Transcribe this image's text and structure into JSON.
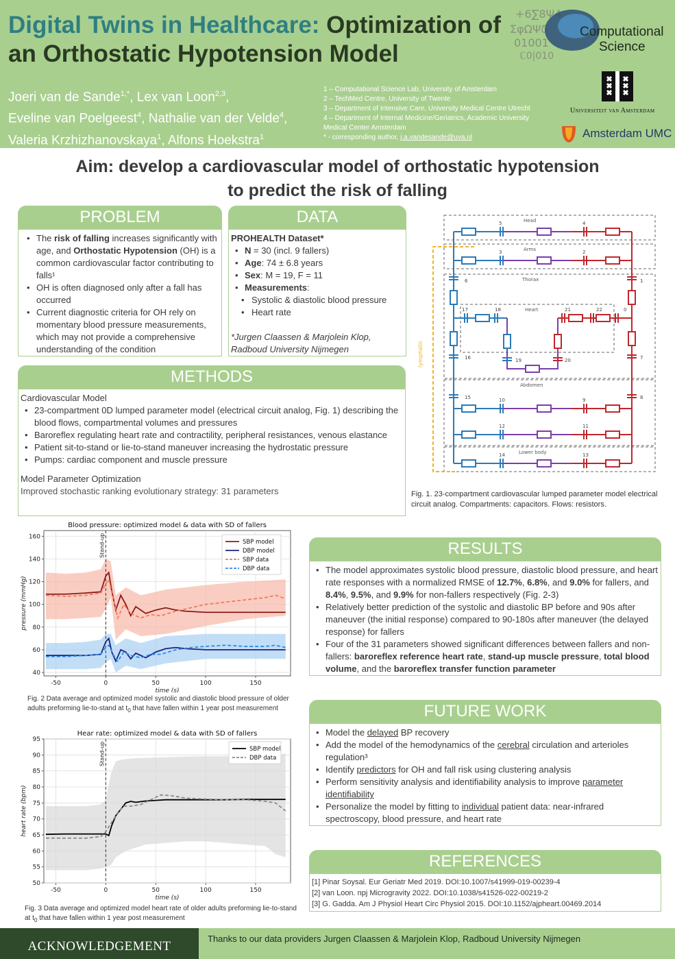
{
  "header": {
    "title_part1": "Digital Twins in Healthcare:",
    "title_part2": " Optimization of an Orthostatic Hypotension Model",
    "authors": [
      {
        "name": "Joeri van de Sande",
        "sup": "1,*",
        "sep": ", "
      },
      {
        "name": "Lex van Loon",
        "sup": "2,3",
        "sep": ","
      },
      {
        "name": "Eveline van Poelgeest",
        "sup": "4",
        "sep": ", "
      },
      {
        "name": "Nathalie van der Velde",
        "sup": "4",
        "sep": ","
      },
      {
        "name": "Valeria Krzhizhanovskaya",
        "sup": "1",
        "sep": ", "
      },
      {
        "name": "Alfons Hoekstra",
        "sup": "1",
        "sep": ""
      }
    ],
    "affiliations": [
      "1 – Computational Science Lab, University of Amsterdam",
      "2 – TechMed Centre, University of Twente",
      "3 – Department of Intensive Care, University Medical Centre Utrecht",
      "4 – Department of Internal Medicine/Geriatrics, Academic University Medical Center Amsterdam"
    ],
    "corresponding_prefix": "* - corresponding author, ",
    "corresponding_email": "j.a.vandesande@uva.nl",
    "logo_cs_line1": "Computational",
    "logo_cs_line2": "Science",
    "logo_uva_text": "Universiteit van Amsterdam",
    "logo_amc_text": "Amsterdam UMC"
  },
  "aim": {
    "line1": "Aim: develop a cardiovascular model of orthostatic hypotension",
    "line2": "to predict the risk of falling"
  },
  "problem": {
    "heading": "PROBLEM",
    "bullets": [
      {
        "before": "The ",
        "b1": "risk of falling",
        "middle": " increases significantly with age, and ",
        "b2": "Orthostatic Hypotension",
        "after": " (OH) is a common cardiovascular factor contributing to falls¹"
      },
      {
        "text": "OH is often diagnosed only after a fall has occurred"
      },
      {
        "text": "Current diagnostic criteria for OH rely on momentary blood pressure measurements, which may not provide a comprehensive understanding of the condition"
      }
    ]
  },
  "data": {
    "heading": "DATA",
    "dataset": "PROHEALTH Dataset*",
    "items": [
      {
        "label": "N",
        "value": " = 30 (incl. 9 fallers)"
      },
      {
        "label": "Age",
        "value": ": 74 ± 6.8 years"
      },
      {
        "label": "Sex",
        "value": ": M = 19, F = 11"
      },
      {
        "label": "Measurements",
        "value": ":"
      }
    ],
    "measurements": [
      "Systolic & diastolic blood pressure",
      "Heart rate"
    ],
    "credit_line1": "*Jurgen Claassen & Marjolein Klop,",
    "credit_line2": "Radboud University Nijmegen"
  },
  "methods": {
    "heading": "METHODS",
    "sub1": "Cardiovascular Model",
    "bullets": [
      "23-compartment 0D lumped parameter model (electrical circuit analog, Fig. 1) describing the blood flows, compartmental volumes and pressures",
      "Baroreflex regulating heart rate and contractility, peripheral resistances, venous elastance",
      "Patient sit-to-stand or lie-to-stand maneuver increasing the hydrostatic pressure",
      "Pumps: cardiac component and muscle pressure"
    ],
    "sub2": "Model Parameter Optimization",
    "opt_text": "Improved stochastic ranking evolutionary strategy: 31 parameters"
  },
  "circuit": {
    "labels": {
      "head": "Head",
      "arms": "Arms",
      "thorax": "Thorax",
      "heart": "Heart",
      "abdomen": "Abdomen",
      "lower_body": "Lower body",
      "lymphatic": "lymphatic"
    },
    "numbers": [
      "5",
      "4",
      "3",
      "2",
      "6",
      "1",
      "17",
      "18",
      "21",
      "22",
      "0",
      "19",
      "20",
      "16",
      "7",
      "15",
      "10",
      "9",
      "8",
      "12",
      "11",
      "14",
      "13"
    ],
    "colors": {
      "venous": "#2a7ab8",
      "arterial": "#c0262b",
      "capillary": "#7a3ea8",
      "lymph": "#f0b32a"
    },
    "caption": "Fig. 1. 23-compartment cardiovascular lumped parameter model electrical circuit analog. Compartments: capacitors. Flows: resistors."
  },
  "results": {
    "heading": "RESULTS",
    "b1": {
      "t1": "The model approximates systolic blood pressure, diastolic blood pressure, and heart rate responses with a normalized RMSE of ",
      "v1": "12.7%",
      "t2": ", ",
      "v2": "6.8%",
      "t3": ", and ",
      "v3": "9.0%",
      "t4": " for fallers, and ",
      "v4": "8.4%",
      "t5": ", ",
      "v5": "9.5%",
      "t6": ", and ",
      "v6": "9.9%",
      "t7": " for non-fallers respectively (Fig. 2-3)"
    },
    "b2": "Relatively better prediction of the systolic and diastolic BP before and 90s after maneuver (the initial response) compared to 90-180s after maneuver (the delayed response) for fallers",
    "b3": {
      "t1": "Four of the 31 parameters showed significant differences between fallers and non-fallers: ",
      "p1": "baroreflex reference heart rate",
      "t2": ", ",
      "p2": "stand-up muscle pressure",
      "t3": ", ",
      "p3": "total blood volume",
      "t4": ", and the ",
      "p4": "baroreflex transfer function parameter"
    }
  },
  "future": {
    "heading": "FUTURE WORK",
    "items": [
      {
        "a": "Model the ",
        "u": "delayed",
        "b": " BP recovery"
      },
      {
        "a": "Add the model of the hemodynamics of the ",
        "u": "cerebral",
        "b": " circulation and arterioles regulation³"
      },
      {
        "a": "Identify ",
        "u": "predictors",
        "b": " for OH and fall risk using clustering analysis"
      },
      {
        "a": "Perform sensitivity analysis and identifiability analysis to improve ",
        "u": "parameter identifiability",
        "b": ""
      },
      {
        "a": "Personalize the model by fitting to ",
        "u": "individual",
        "b": " patient data: near-infrared spectroscopy, blood pressure, and heart rate"
      }
    ]
  },
  "references": {
    "heading": "REFERENCES",
    "items": [
      "[1] Pinar Soysal. Eur Geriatr Med 2019. DOI:10.1007/s41999-019-00239-4",
      "[2] van Loon. npj Microgravity 2022. DOI:10.1038/s41526-022-00219-2",
      "[3] G. Gadda. Am J Physiol Heart Circ Physiol 2015. DOI:10.1152/ajpheart.00469.2014"
    ]
  },
  "fig2_caption": {
    "a": "Fig. 2 Data average and optimized model systolic and diastolic blood pressure of older adults preforming lie-to-stand at t",
    "sub": "0",
    "b": " that have fallen within 1 year post measurement"
  },
  "fig3_caption": {
    "a": "Fig. 3 Data average and optimized model heart rate of older adults preforming lie-to-stand at t",
    "sub": "0",
    "b": " that have fallen within 1 year post measurement"
  },
  "acknowledgement": {
    "label": "ACKNOWLEDGEMENT",
    "text": "Thanks to our data providers Jurgen Claassen & Marjolein Klop, Radboud University Nijmegen"
  },
  "chart_data": [
    {
      "type": "line",
      "title": "Blood pressure: optimized model & data with SD of fallers",
      "xlabel": "time (s)",
      "ylabel": "pressure (mmHg)",
      "xlim": [
        -62,
        185
      ],
      "ylim": [
        37,
        165
      ],
      "xticks": [
        -50,
        0,
        50,
        100,
        150
      ],
      "yticks": [
        40,
        60,
        80,
        100,
        120,
        140,
        160
      ],
      "grid": true,
      "legend": "top-right",
      "annotation": "Stand-up",
      "annotation_x": 0,
      "series": [
        {
          "name": "SBP model",
          "color": "#8b1a1a",
          "style": "solid",
          "x": [
            -60,
            -40,
            -20,
            -5,
            0,
            3,
            6,
            10,
            15,
            20,
            25,
            30,
            40,
            50,
            60,
            70,
            80,
            100,
            120,
            140,
            160,
            180
          ],
          "y": [
            109,
            109,
            110,
            111,
            125,
            128,
            112,
            95,
            108,
            100,
            90,
            98,
            92,
            95,
            97,
            95,
            94,
            93,
            93,
            93,
            93,
            93
          ]
        },
        {
          "name": "DBP model",
          "color": "#1a237e",
          "style": "solid",
          "x": [
            -60,
            -40,
            -20,
            -5,
            0,
            3,
            6,
            10,
            15,
            20,
            25,
            30,
            40,
            50,
            60,
            70,
            80,
            100,
            120,
            140,
            160,
            180
          ],
          "y": [
            55,
            55,
            55,
            56,
            67,
            70,
            58,
            50,
            60,
            58,
            52,
            57,
            53,
            58,
            61,
            62,
            61,
            60,
            60,
            60,
            60,
            60
          ]
        },
        {
          "name": "SBP data",
          "color": "#f07b5a",
          "style": "dashed",
          "x": [
            -60,
            -40,
            -20,
            -5,
            0,
            3,
            8,
            12,
            18,
            25,
            35,
            45,
            55,
            70,
            85,
            100,
            120,
            140,
            160,
            170,
            180
          ],
          "y": [
            108,
            107,
            108,
            110,
            118,
            122,
            103,
            88,
            100,
            92,
            88,
            91,
            90,
            94,
            97,
            100,
            102,
            104,
            106,
            108,
            105
          ]
        },
        {
          "name": "DBP data",
          "color": "#2e8ae6",
          "style": "dashed",
          "x": [
            -60,
            -40,
            -20,
            -5,
            0,
            3,
            8,
            12,
            18,
            25,
            35,
            45,
            55,
            70,
            85,
            100,
            120,
            140,
            160,
            170,
            180
          ],
          "y": [
            54,
            54,
            55,
            56,
            62,
            64,
            55,
            50,
            58,
            55,
            53,
            56,
            56,
            60,
            62,
            63,
            64,
            63,
            63,
            64,
            62
          ]
        }
      ],
      "bands": [
        {
          "name": "SBP SD",
          "color": "#f8b8a8",
          "x": [
            -60,
            -40,
            -20,
            -5,
            0,
            5,
            10,
            20,
            35,
            60,
            100,
            140,
            180
          ],
          "upper": [
            128,
            127,
            128,
            131,
            140,
            138,
            108,
            115,
            108,
            113,
            117,
            120,
            122
          ],
          "lower": [
            87,
            87,
            88,
            89,
            96,
            106,
            69,
            78,
            72,
            74,
            81,
            87,
            90
          ]
        },
        {
          "name": "DBP SD",
          "color": "#a8d0f4",
          "x": [
            -60,
            -40,
            -20,
            -5,
            0,
            5,
            10,
            20,
            35,
            60,
            100,
            140,
            180
          ],
          "upper": [
            66,
            66,
            67,
            69,
            74,
            74,
            64,
            70,
            66,
            72,
            74,
            74,
            74
          ],
          "lower": [
            43,
            43,
            43,
            44,
            49,
            52,
            40,
            46,
            43,
            48,
            52,
            52,
            52
          ]
        }
      ]
    },
    {
      "type": "line",
      "title": "Hear rate: optimized model & data with SD of fallers",
      "xlabel": "time (s)",
      "ylabel": "heart rate (bpm)",
      "xlim": [
        -62,
        185
      ],
      "ylim": [
        50,
        95
      ],
      "xticks": [
        -50,
        0,
        50,
        100,
        150
      ],
      "yticks": [
        50,
        55,
        60,
        65,
        70,
        75,
        80,
        85,
        90,
        95
      ],
      "grid": true,
      "legend": "top-right",
      "annotation": "Stand-up",
      "annotation_x": 0,
      "series": [
        {
          "name": "SBP model",
          "color": "#000000",
          "style": "solid",
          "x": [
            -60,
            -40,
            -20,
            0,
            3,
            6,
            10,
            15,
            20,
            25,
            30,
            40,
            50,
            60,
            80,
            100,
            120,
            140,
            160,
            180
          ],
          "y": [
            65.2,
            65.3,
            65.3,
            65.3,
            64.8,
            68,
            71,
            73,
            75,
            75.5,
            75.2,
            75.6,
            75.8,
            76,
            76,
            76,
            76,
            76.1,
            76.1,
            76.1
          ]
        },
        {
          "name": "DBP data",
          "color": "#8a8a8a",
          "style": "dashed",
          "x": [
            -60,
            -40,
            -20,
            -5,
            0,
            4,
            8,
            12,
            18,
            25,
            35,
            45,
            55,
            65,
            80,
            100,
            120,
            140,
            160,
            170,
            180
          ],
          "y": [
            64,
            64,
            64,
            64.5,
            66,
            68,
            70,
            72,
            74,
            74,
            74.5,
            76,
            77.5,
            77.3,
            76.5,
            76.2,
            76,
            76,
            75.5,
            75,
            72.5
          ]
        }
      ],
      "bands": [
        {
          "name": "HR SD",
          "color": "#d9d9d9",
          "x": [
            -60,
            -40,
            -20,
            -5,
            0,
            5,
            10,
            15,
            20,
            30,
            40,
            60,
            80,
            100,
            120,
            140,
            160,
            170,
            180
          ],
          "upper": [
            74,
            74,
            74,
            74.5,
            76,
            84,
            88,
            88.5,
            88.7,
            89,
            89.1,
            89.3,
            89.5,
            89.6,
            89.6,
            89.6,
            89.7,
            89.8,
            90.5
          ],
          "lower": [
            54,
            54,
            54,
            54.5,
            55,
            55.5,
            58,
            59,
            60,
            61,
            62,
            62.5,
            63,
            63,
            62.5,
            62,
            61.5,
            59,
            58
          ]
        }
      ]
    }
  ]
}
